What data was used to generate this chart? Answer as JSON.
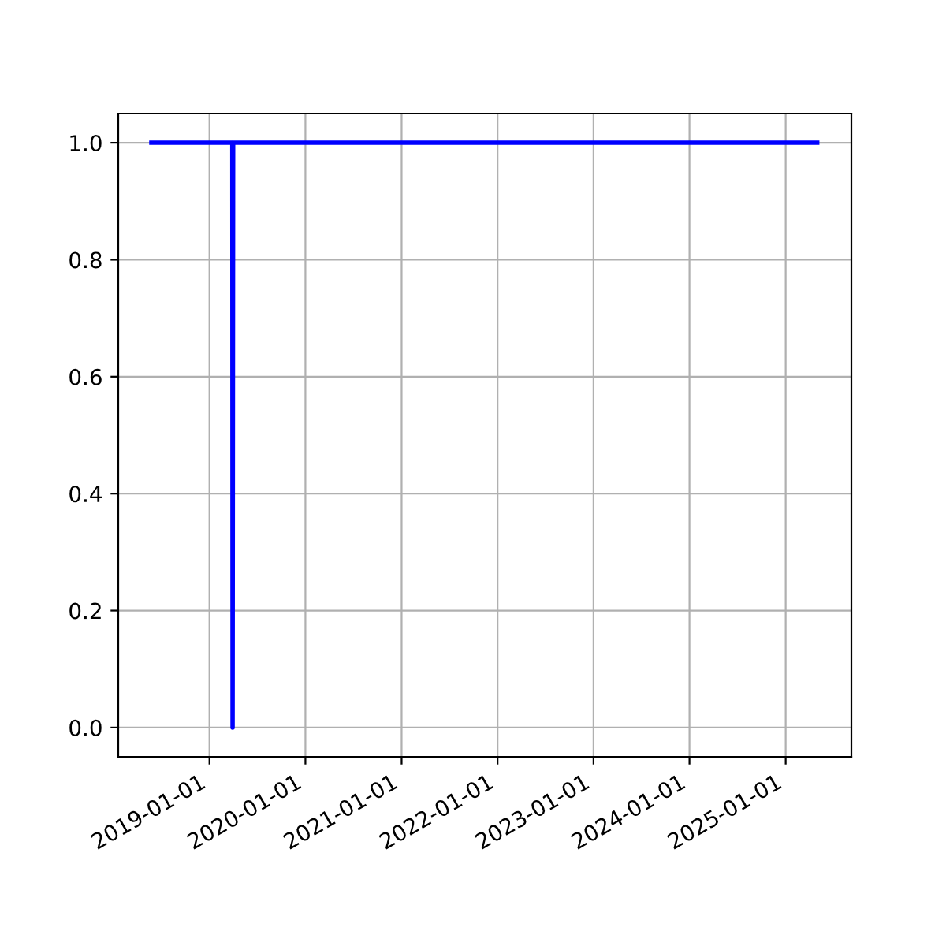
{
  "chart_data": {
    "type": "line",
    "x": [
      "2018-05-25",
      "2019-03-29",
      "2019-03-30",
      "2019-04-01",
      "2025-05-01"
    ],
    "series": [
      {
        "color": "#0000ff",
        "values": [
          1,
          1,
          0,
          1,
          1
        ]
      }
    ],
    "xlim": [
      "2018-01-19",
      "2025-09-08"
    ],
    "xticks": [
      {
        "value": "2019-01-01",
        "label": "2019-01-01"
      },
      {
        "value": "2020-01-01",
        "label": "2020-01-01"
      },
      {
        "value": "2021-01-01",
        "label": "2021-01-01"
      },
      {
        "value": "2022-01-01",
        "label": "2022-01-01"
      },
      {
        "value": "2023-01-01",
        "label": "2023-01-01"
      },
      {
        "value": "2024-01-01",
        "label": "2024-01-01"
      },
      {
        "value": "2025-01-01",
        "label": "2025-01-01"
      }
    ],
    "ylim": [
      -0.05,
      1.05
    ],
    "yticks": [
      {
        "value": 0,
        "label": "0.0"
      },
      {
        "value": 0.2,
        "label": "0.2"
      },
      {
        "value": 0.4,
        "label": "0.4"
      },
      {
        "value": 0.6,
        "label": "0.6"
      },
      {
        "value": 0.8,
        "label": "0.8"
      },
      {
        "value": 1,
        "label": "1.0"
      }
    ],
    "grid": true
  }
}
